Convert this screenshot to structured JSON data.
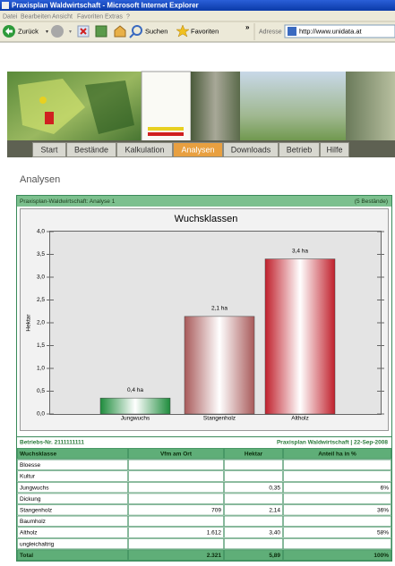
{
  "browser": {
    "title": "Praxisplan Waldwirtschaft - Microsoft Internet Explorer",
    "menu": [
      "Datei",
      "Bearbeiten",
      "Ansicht",
      "Favoriten",
      "Extras",
      "?"
    ],
    "back": "Zurück",
    "search": "Suchen",
    "favorites": "Favoriten",
    "more": "»",
    "address_label": "Adresse",
    "url": "http://www.unidata.at"
  },
  "nav": {
    "tabs": [
      "Start",
      "Bestände",
      "Kalkulation",
      "Analysen",
      "Downloads",
      "Betrieb",
      "Hilfe"
    ],
    "active": 3
  },
  "heading": "Analysen",
  "panel": {
    "title": "Praxisplan-Waldwirtschaft: Analyse 1",
    "count": "(5 Bestände)",
    "footer_left": "Betriebs-Nr. 2111111111",
    "footer_right": "Praxisplan Waldwirtschaft | 22-Sep-2008"
  },
  "chart_data": {
    "type": "bar",
    "title": "Wuchsklassen",
    "y_label": "Hektar",
    "categories": [
      "Jungwuchs",
      "Stangenholz",
      "Altholz"
    ],
    "values": [
      0.35,
      2.14,
      3.4
    ],
    "value_labels": [
      "0,4 ha",
      "2,1 ha",
      "3,4 ha"
    ],
    "colors": [
      "#1e8c3c",
      "#a85a5a",
      "#c0202c"
    ],
    "ylim": [
      0,
      4
    ],
    "yticks": [
      {
        "value": 0,
        "label": "0,0"
      },
      {
        "value": 0.5,
        "label": "0,5"
      },
      {
        "value": 1,
        "label": "1,0"
      },
      {
        "value": 1.5,
        "label": "1,5"
      },
      {
        "value": 2,
        "label": "2,0"
      },
      {
        "value": 2.5,
        "label": "2,5"
      },
      {
        "value": 3,
        "label": "3,0"
      },
      {
        "value": 3.5,
        "label": "3,5"
      },
      {
        "value": 4,
        "label": "4,0"
      }
    ],
    "grid": false
  },
  "table": {
    "columns": [
      "Wuchsklasse",
      "Vfm am Ort",
      "Hektar",
      "Anteil ha in %"
    ],
    "rows": [
      [
        "Bloesse",
        "",
        "",
        ""
      ],
      [
        "Kultur",
        "",
        "",
        ""
      ],
      [
        "Jungwuchs",
        "",
        "0,35",
        "6%"
      ],
      [
        "Dickung",
        "",
        "",
        ""
      ],
      [
        "Stangenholz",
        "709",
        "2,14",
        "36%"
      ],
      [
        "Baumholz",
        "",
        "",
        ""
      ],
      [
        "Altholz",
        "1.612",
        "3,40",
        "58%"
      ],
      [
        "ungleichaltrig",
        "",
        "",
        ""
      ],
      [
        "Total",
        "2.321",
        "5,89",
        "100%"
      ]
    ]
  }
}
